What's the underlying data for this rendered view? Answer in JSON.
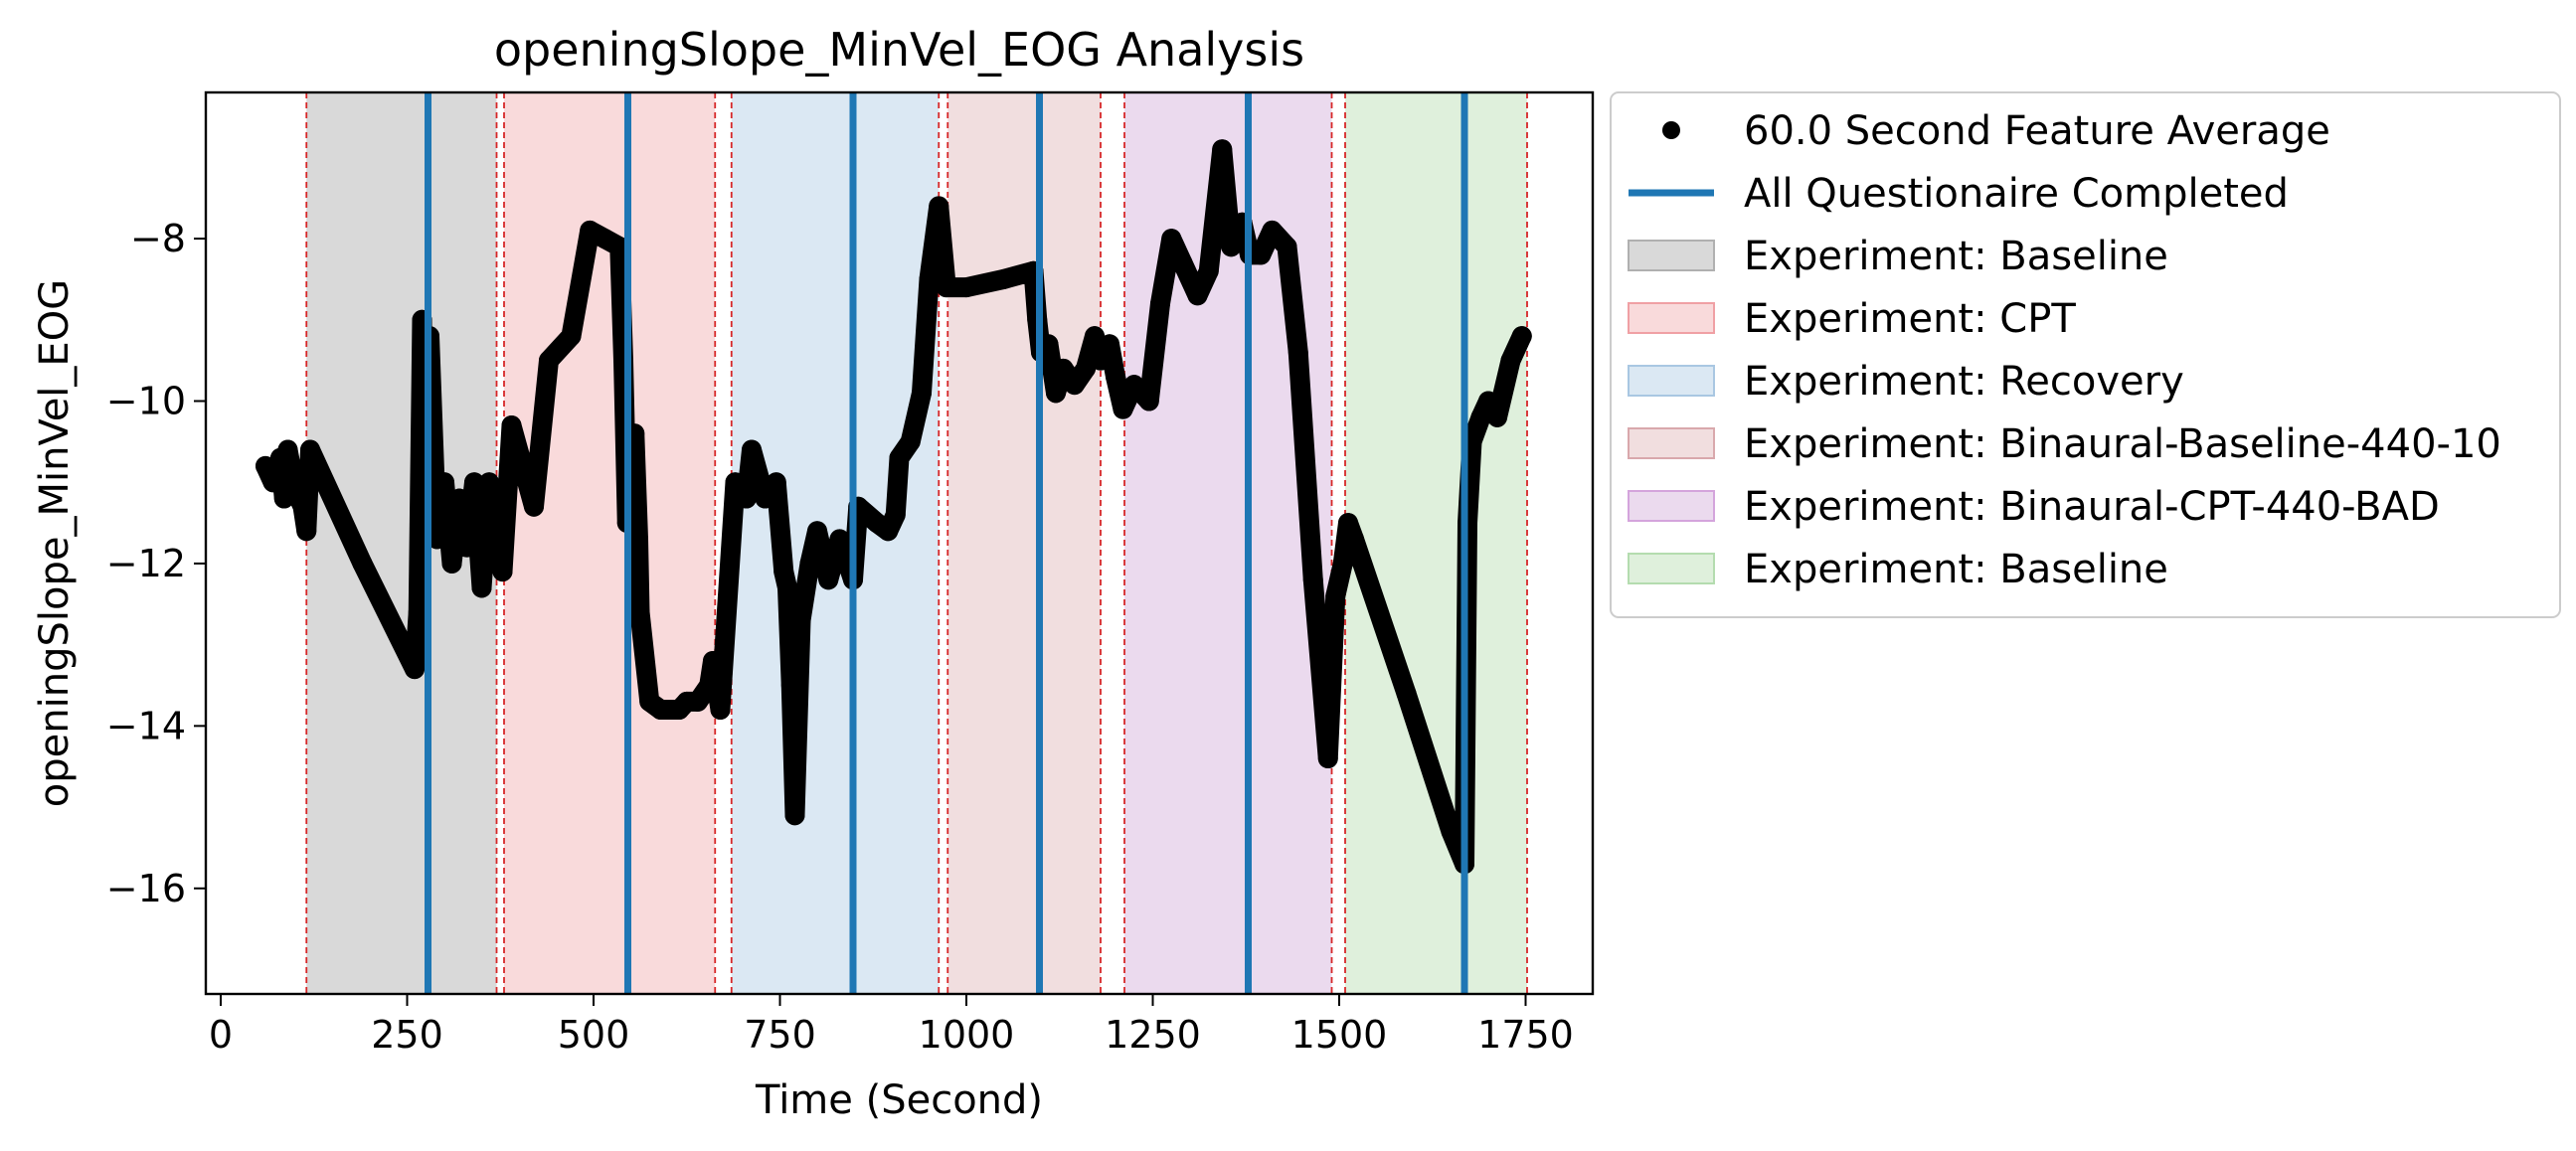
{
  "chart_data": {
    "type": "scatter",
    "title": "openingSlope_MinVel_EOG Analysis",
    "xlabel": "Time (Second)",
    "ylabel": "openingSlope_MinVel_EOG",
    "xlim": [
      -20,
      1840
    ],
    "ylim": [
      -17.3,
      -6.2
    ],
    "xticks": [
      0,
      250,
      500,
      750,
      1000,
      1250,
      1500,
      1750
    ],
    "yticks": [
      -16,
      -14,
      -12,
      -10,
      -8
    ],
    "grid": false,
    "legend_position": "outside-right",
    "legend": [
      {
        "label": "60.0 Second Feature Average",
        "kind": "marker",
        "color": "#000000"
      },
      {
        "label": "All Questionaire Completed",
        "kind": "line",
        "color": "#1f77b4"
      },
      {
        "label": "Experiment: Baseline",
        "kind": "patch",
        "color": "#d9d9d9",
        "edge": "#b0b0b0"
      },
      {
        "label": "Experiment: CPT",
        "kind": "patch",
        "color": "#f9dadb",
        "edge": "#f0a0a4"
      },
      {
        "label": "Experiment: Recovery",
        "kind": "patch",
        "color": "#dbe8f3",
        "edge": "#a9c7e2"
      },
      {
        "label": "Experiment: Binaural-Baseline-440-10",
        "kind": "patch",
        "color": "#f1dedf",
        "edge": "#d9a8ac"
      },
      {
        "label": "Experiment: Binaural-CPT-440-BAD",
        "kind": "patch",
        "color": "#ebdaee",
        "edge": "#d4a4dc"
      },
      {
        "label": "Experiment: Baseline",
        "kind": "patch",
        "color": "#dff0dc",
        "edge": "#b4dcaf"
      }
    ],
    "spans": [
      {
        "label": "Experiment: Baseline",
        "start": 115,
        "end": 370,
        "color": "#d9d9d9"
      },
      {
        "label": "Experiment: CPT",
        "start": 380,
        "end": 663,
        "color": "#f9dadb"
      },
      {
        "label": "Experiment: Recovery",
        "start": 685,
        "end": 963,
        "color": "#dbe8f3"
      },
      {
        "label": "Experiment: Binaural-Baseline-440-10",
        "start": 975,
        "end": 1180,
        "color": "#f1dedf"
      },
      {
        "label": "Experiment: Binaural-CPT-440-BAD",
        "start": 1212,
        "end": 1490,
        "color": "#ebdaee"
      },
      {
        "label": "Experiment: Baseline",
        "start": 1508,
        "end": 1752,
        "color": "#dff0dc"
      }
    ],
    "boundary_lines": [
      115,
      370,
      380,
      663,
      685,
      963,
      975,
      1180,
      1212,
      1490,
      1508,
      1752
    ],
    "questionnaire_lines": [
      278,
      546,
      848,
      1098,
      1378,
      1668
    ],
    "series": [
      {
        "name": "60.0 Second Feature Average",
        "color": "#000000",
        "points": [
          [
            60,
            -10.8
          ],
          [
            70,
            -11.0
          ],
          [
            80,
            -10.7
          ],
          [
            85,
            -11.2
          ],
          [
            90,
            -10.6
          ],
          [
            100,
            -11.1
          ],
          [
            110,
            -11.3
          ],
          [
            115,
            -11.6
          ],
          [
            120,
            -10.6
          ],
          [
            190,
            -12.0
          ],
          [
            260,
            -13.3
          ],
          [
            265,
            -12.6
          ],
          [
            270,
            -9.0
          ],
          [
            272,
            -11.5
          ],
          [
            280,
            -9.2
          ],
          [
            290,
            -11.7
          ],
          [
            300,
            -11.0
          ],
          [
            310,
            -12.0
          ],
          [
            320,
            -11.2
          ],
          [
            330,
            -11.8
          ],
          [
            340,
            -11.0
          ],
          [
            350,
            -12.3
          ],
          [
            360,
            -11.0
          ],
          [
            370,
            -11.3
          ],
          [
            378,
            -12.1
          ],
          [
            390,
            -10.3
          ],
          [
            420,
            -11.3
          ],
          [
            440,
            -9.5
          ],
          [
            470,
            -9.2
          ],
          [
            495,
            -7.9
          ],
          [
            515,
            -8.0
          ],
          [
            535,
            -8.1
          ],
          [
            540,
            -9.5
          ],
          [
            545,
            -11.5
          ],
          [
            555,
            -10.4
          ],
          [
            560,
            -11.7
          ],
          [
            562,
            -12.6
          ],
          [
            575,
            -13.7
          ],
          [
            590,
            -13.8
          ],
          [
            615,
            -13.8
          ],
          [
            625,
            -13.7
          ],
          [
            640,
            -13.7
          ],
          [
            655,
            -13.5
          ],
          [
            660,
            -13.2
          ],
          [
            670,
            -13.8
          ],
          [
            690,
            -11.0
          ],
          [
            705,
            -11.2
          ],
          [
            712,
            -10.6
          ],
          [
            730,
            -11.2
          ],
          [
            745,
            -11.0
          ],
          [
            755,
            -12.1
          ],
          [
            760,
            -12.3
          ],
          [
            765,
            -13.5
          ],
          [
            770,
            -15.1
          ],
          [
            778,
            -12.7
          ],
          [
            790,
            -12.0
          ],
          [
            800,
            -11.6
          ],
          [
            815,
            -12.2
          ],
          [
            830,
            -11.7
          ],
          [
            848,
            -12.2
          ],
          [
            855,
            -11.3
          ],
          [
            880,
            -11.5
          ],
          [
            895,
            -11.6
          ],
          [
            905,
            -11.4
          ],
          [
            910,
            -10.7
          ],
          [
            925,
            -10.5
          ],
          [
            940,
            -9.9
          ],
          [
            950,
            -8.5
          ],
          [
            963,
            -7.6
          ],
          [
            973,
            -8.6
          ],
          [
            1000,
            -8.6
          ],
          [
            1050,
            -8.5
          ],
          [
            1090,
            -8.4
          ],
          [
            1095,
            -9.0
          ],
          [
            1100,
            -9.4
          ],
          [
            1110,
            -9.3
          ],
          [
            1120,
            -9.9
          ],
          [
            1130,
            -9.6
          ],
          [
            1145,
            -9.8
          ],
          [
            1160,
            -9.6
          ],
          [
            1172,
            -9.2
          ],
          [
            1180,
            -9.5
          ],
          [
            1192,
            -9.3
          ],
          [
            1200,
            -9.7
          ],
          [
            1210,
            -10.1
          ],
          [
            1225,
            -9.8
          ],
          [
            1245,
            -10.0
          ],
          [
            1260,
            -8.8
          ],
          [
            1275,
            -8.0
          ],
          [
            1290,
            -8.3
          ],
          [
            1310,
            -8.7
          ],
          [
            1325,
            -8.4
          ],
          [
            1343,
            -6.9
          ],
          [
            1355,
            -8.1
          ],
          [
            1370,
            -7.8
          ],
          [
            1380,
            -8.2
          ],
          [
            1395,
            -8.2
          ],
          [
            1410,
            -7.9
          ],
          [
            1430,
            -8.1
          ],
          [
            1445,
            -9.4
          ],
          [
            1465,
            -12.2
          ],
          [
            1485,
            -14.4
          ],
          [
            1495,
            -12.4
          ],
          [
            1505,
            -12.0
          ],
          [
            1512,
            -11.5
          ],
          [
            1520,
            -11.7
          ],
          [
            1590,
            -13.6
          ],
          [
            1650,
            -15.3
          ],
          [
            1668,
            -15.7
          ],
          [
            1672,
            -11.5
          ],
          [
            1678,
            -10.5
          ],
          [
            1690,
            -10.2
          ],
          [
            1700,
            -10.0
          ],
          [
            1712,
            -10.2
          ],
          [
            1730,
            -9.5
          ],
          [
            1745,
            -9.2
          ]
        ]
      }
    ]
  }
}
